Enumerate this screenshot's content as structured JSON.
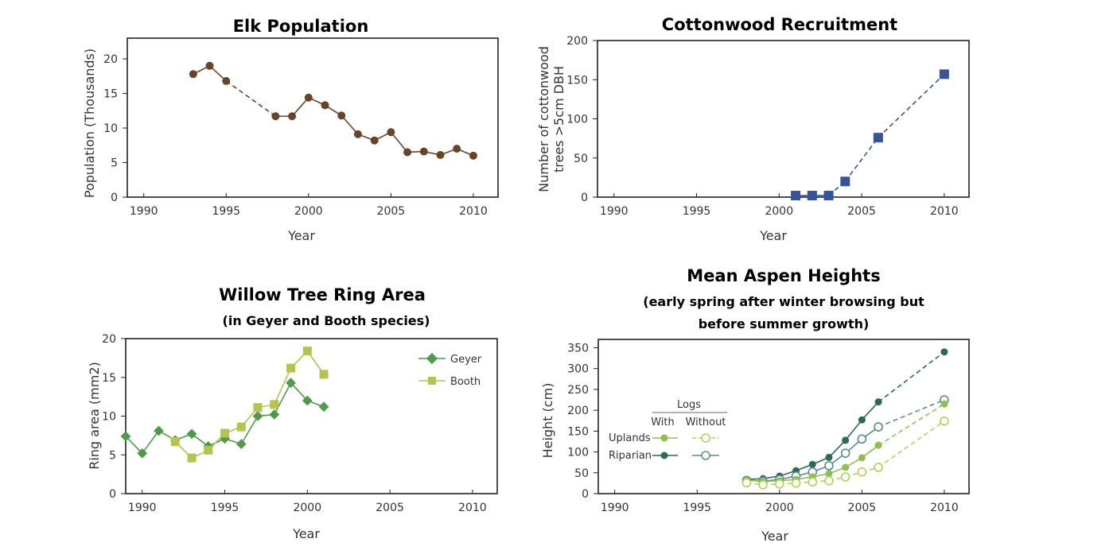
{
  "colors": {
    "elk": "#6b4426",
    "cottonwood": "#35549a",
    "geyer": "#4e9a48",
    "booth": "#b4c44c",
    "uplands": "#8dc04e",
    "riparian": "#2b6a54",
    "uplands_logs": "#b7cf5a",
    "riparian_logs": "#5c8a92"
  },
  "chart_data": [
    {
      "id": "elk",
      "type": "line",
      "title": "Elk Population",
      "xlabel": "Year",
      "ylabel": "Population (Thousands)",
      "xlim": [
        1989,
        2011.5
      ],
      "ylim": [
        0,
        23
      ],
      "xticks": [
        1990,
        1995,
        2000,
        2005,
        2010
      ],
      "yticks": [
        0,
        5,
        10,
        15,
        20
      ],
      "series": [
        {
          "name": "Elk",
          "x": [
            1993,
            1994,
            1995,
            1998,
            1999,
            2000,
            2001,
            2002,
            2003,
            2004,
            2005,
            2006,
            2007,
            2008,
            2009,
            2010
          ],
          "values": [
            17.8,
            19.0,
            16.8,
            11.7,
            11.7,
            14.4,
            13.3,
            11.8,
            9.1,
            8.2,
            9.4,
            6.5,
            6.6,
            6.1,
            7.0,
            6.0
          ],
          "dashed_segments": [
            2
          ]
        }
      ]
    },
    {
      "id": "cottonwood",
      "type": "line",
      "title": "Cottonwood Recruitment",
      "xlabel": "Year",
      "ylabel": "Number of cottonwood trees >5cm DBH",
      "ylabel_lines": [
        "Number of cottonwood",
        "trees >5cm DBH"
      ],
      "xlim": [
        1989,
        2011.5
      ],
      "ylim": [
        0,
        200
      ],
      "xticks": [
        1990,
        1995,
        2000,
        2005,
        2010
      ],
      "yticks": [
        0,
        50,
        100,
        150,
        200
      ],
      "series": [
        {
          "name": "Cottonwood",
          "x": [
            2001,
            2002,
            2003,
            2004,
            2006,
            2010
          ],
          "values": [
            2,
            2,
            2,
            20,
            76,
            157
          ],
          "dashed_segments": [
            2,
            3,
            4
          ]
        }
      ]
    },
    {
      "id": "willow",
      "type": "line",
      "title": "Willow Tree Ring Area",
      "subtitle": "(in Geyer and Booth species)",
      "xlabel": "Year",
      "ylabel": "Ring area (mm2)",
      "xlim": [
        1989,
        2011.5
      ],
      "ylim": [
        0,
        20
      ],
      "xticks": [
        1990,
        1995,
        2000,
        2005,
        2010
      ],
      "yticks": [
        0,
        5,
        10,
        15,
        20
      ],
      "legend_position": "top-right",
      "series": [
        {
          "name": "Geyer",
          "x": [
            1989,
            1990,
            1991,
            1992,
            1993,
            1994,
            1995,
            1996,
            1997,
            1998,
            1999,
            2000,
            2001
          ],
          "values": [
            7.4,
            5.2,
            8.1,
            6.9,
            7.7,
            6.1,
            7.1,
            6.4,
            10.0,
            10.2,
            14.3,
            12.0,
            11.2
          ]
        },
        {
          "name": "Booth",
          "x": [
            1992,
            1993,
            1994,
            1995,
            1996,
            1997,
            1998,
            1999,
            2000,
            2001
          ],
          "values": [
            6.7,
            4.6,
            5.6,
            7.8,
            8.6,
            11.1,
            11.5,
            16.2,
            18.4,
            15.4
          ]
        }
      ]
    },
    {
      "id": "aspen",
      "type": "line",
      "title": "Mean Aspen Heights",
      "subtitle_lines": [
        "(early spring after winter browsing but",
        "before summer growth)"
      ],
      "xlabel": "Year",
      "ylabel": "Height (cm)",
      "xlim": [
        1989,
        2011.5
      ],
      "ylim": [
        0,
        370
      ],
      "xticks": [
        1990,
        1995,
        2000,
        2005,
        2010
      ],
      "yticks": [
        0,
        50,
        100,
        150,
        200,
        250,
        300,
        350
      ],
      "legend": {
        "header": "Logs",
        "col_with": "With",
        "col_without": "Without",
        "row_uplands": "Uplands",
        "row_riparian": "Riparian",
        "position": "left-middle"
      },
      "series": [
        {
          "name": "Riparian With",
          "x": [
            1998,
            1999,
            2000,
            2001,
            2002,
            2003,
            2004,
            2005,
            2006,
            2010
          ],
          "values": [
            34,
            36,
            42,
            55,
            70,
            87,
            128,
            177,
            220,
            340
          ],
          "dashed_segments": [
            8
          ]
        },
        {
          "name": "Riparian Without",
          "x": [
            1998,
            1999,
            2000,
            2001,
            2002,
            2003,
            2004,
            2005,
            2006,
            2010
          ],
          "values": [
            32,
            30,
            34,
            42,
            52,
            67,
            97,
            131,
            160,
            225
          ],
          "dashed_segments": [
            8
          ]
        },
        {
          "name": "Uplands With",
          "x": [
            1998,
            1999,
            2000,
            2001,
            2002,
            2003,
            2004,
            2005,
            2006,
            2010
          ],
          "values": [
            33,
            29,
            31,
            34,
            40,
            48,
            63,
            86,
            116,
            215
          ],
          "dashed_segments": [
            8
          ]
        },
        {
          "name": "Uplands Without",
          "x": [
            1998,
            1999,
            2000,
            2001,
            2002,
            2003,
            2004,
            2005,
            2006,
            2010
          ],
          "values": [
            26,
            21,
            23,
            25,
            28,
            31,
            40,
            52,
            63,
            174
          ],
          "dashed_segments": [
            8
          ]
        }
      ]
    }
  ]
}
